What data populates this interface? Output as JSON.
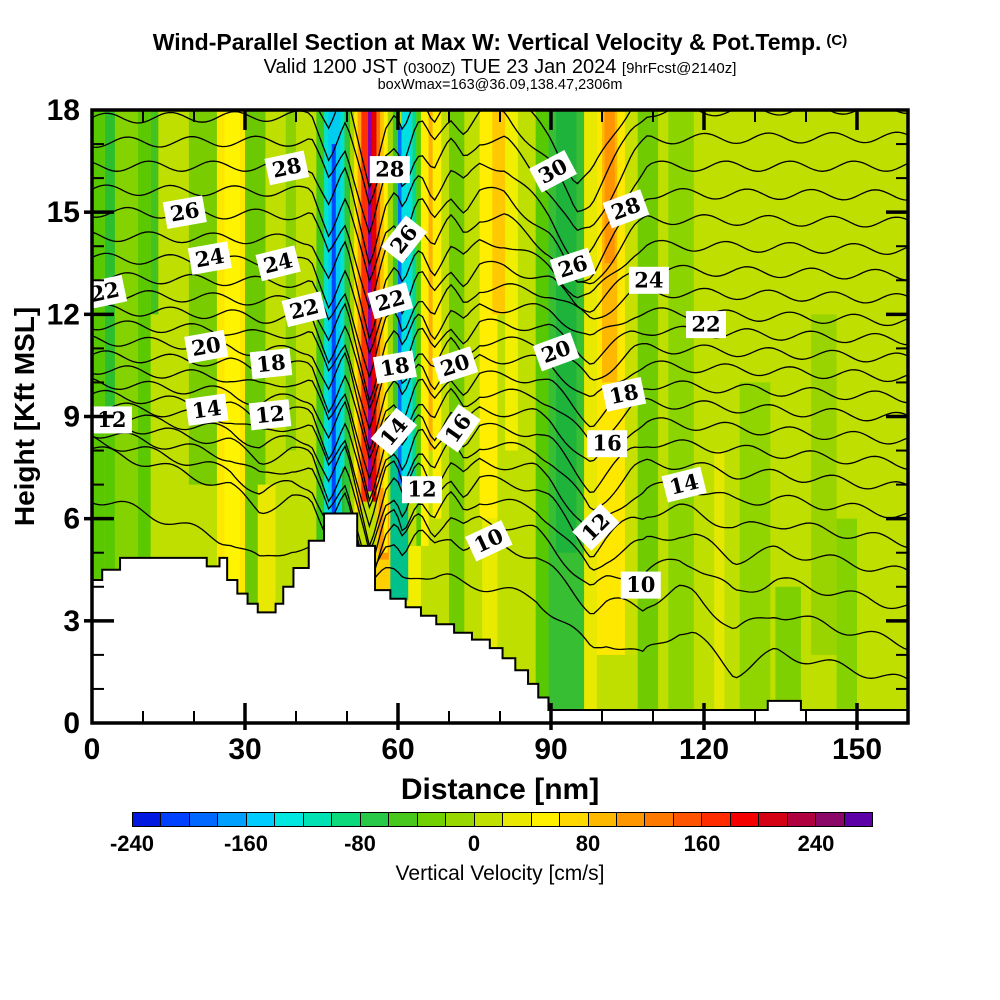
{
  "header": {
    "title": "Wind-Parallel Section at Max W: Vertical Velocity & Pot.Temp.",
    "title_unit": "(C)",
    "valid_prefix": "Valid 1200 JST",
    "valid_z": "(0300Z)",
    "valid_date": "TUE 23 Jan 2024",
    "fcst_tag": "[9hrFcst@2140z]",
    "annotation": "boxWmax=163@36.09,138.47,2306m"
  },
  "chart_data": {
    "type": "heatmap",
    "subtype": "shaded-contour-cross-section",
    "x_axis": {
      "label": "Distance [nm]",
      "min": 0,
      "max": 160,
      "major_ticks": [
        0,
        30,
        60,
        90,
        120,
        150
      ],
      "minor_step": 10
    },
    "y_axis": {
      "label": "Height [Kft MSL]",
      "min": 0,
      "max": 18,
      "major_ticks": [
        0,
        3,
        6,
        9,
        12,
        15,
        18
      ],
      "minor_step": 1
    },
    "colorbar": {
      "label": "Vertical Velocity [cm/s]",
      "min": -240,
      "max": 280,
      "step": 20,
      "tick_values": [
        -240,
        -160,
        -80,
        0,
        80,
        160,
        240
      ],
      "colors": [
        "#0018e0",
        "#0040ff",
        "#0068ff",
        "#00a0ff",
        "#00ccff",
        "#00e8e0",
        "#00e2b4",
        "#0cd87c",
        "#28c848",
        "#48c81c",
        "#70d000",
        "#98d800",
        "#c0e000",
        "#e8e800",
        "#fff000",
        "#ffd800",
        "#ffb800",
        "#ff9800",
        "#ff7800",
        "#ff5400",
        "#ff2c00",
        "#f40000",
        "#d40014",
        "#b00040",
        "#8c0868",
        "#5c00a8"
      ]
    },
    "contours": {
      "variable": "Potential Temperature (C)",
      "interval": 1,
      "thetas": [
        8,
        9,
        10,
        11,
        12,
        13,
        14,
        15,
        16,
        17,
        18,
        19,
        20,
        21,
        22,
        23,
        24,
        25,
        26,
        27,
        28,
        29,
        30,
        31
      ],
      "height_left_kft": [
        6.6,
        8.05,
        8.3,
        8.55,
        8.85,
        9.1,
        9.35,
        9.65,
        10.0,
        10.4,
        10.8,
        11.25,
        11.7,
        12.15,
        12.6,
        13.1,
        13.65,
        14.3,
        15.0,
        15.65,
        16.35,
        17.05,
        17.75,
        18.45
      ],
      "height_right_kft": [
        1.2,
        2.3,
        3.4,
        4.4,
        5.3,
        6.1,
        6.9,
        7.6,
        8.3,
        8.95,
        9.55,
        10.15,
        10.7,
        11.25,
        11.8,
        12.45,
        13.15,
        13.9,
        14.7,
        15.5,
        16.35,
        17.2,
        18.05,
        18.9
      ],
      "waves": [
        {
          "c": 46.5,
          "w": 3.5,
          "a": -1.2,
          "f": "mid"
        },
        {
          "c": 54.5,
          "w": 5,
          "a": -2.8,
          "f": "mid"
        },
        {
          "c": 61,
          "w": 3.5,
          "a": -1.4,
          "f": "mid"
        },
        {
          "c": 67,
          "w": 3.5,
          "a": -0.9,
          "f": "mid"
        },
        {
          "c": 73,
          "w": 3,
          "a": -0.5,
          "f": "mid"
        },
        {
          "c": 95,
          "w": 14,
          "a": -2.4,
          "f": "high"
        },
        {
          "c": 98,
          "w": 8,
          "a": -0.7,
          "f": "mid"
        },
        {
          "c": 98,
          "w": 11,
          "a": -1.1,
          "f": "low"
        },
        {
          "c": 33,
          "w": 6,
          "a": -0.5,
          "f": "low"
        },
        {
          "c": 25,
          "w": 20,
          "a": -0.8,
          "f": "vlow"
        },
        {
          "c": 108,
          "w": 7,
          "a": -0.9,
          "f": "vlow"
        },
        {
          "c": 126,
          "w": 8,
          "a": -0.9,
          "f": "vlow"
        }
      ],
      "labels": [
        [
          28,
          38.2,
          16.3,
          -12
        ],
        [
          28,
          58.4,
          16.25,
          0
        ],
        [
          30,
          90.4,
          16.2,
          -28
        ],
        [
          28,
          104.7,
          15.1,
          -20
        ],
        [
          26,
          18.2,
          15.0,
          -10
        ],
        [
          26,
          61.2,
          14.2,
          -52
        ],
        [
          26,
          94.3,
          13.4,
          -18
        ],
        [
          24,
          23.1,
          13.65,
          -10
        ],
        [
          24,
          36.5,
          13.5,
          -14
        ],
        [
          24,
          109.2,
          13.0,
          0
        ],
        [
          22,
          2.5,
          12.65,
          -12
        ],
        [
          22,
          41.6,
          12.15,
          -14
        ],
        [
          22,
          58.5,
          12.4,
          -16
        ],
        [
          22,
          120.4,
          11.7,
          0
        ],
        [
          20,
          22.4,
          11.05,
          -10
        ],
        [
          20,
          71.2,
          10.5,
          -18
        ],
        [
          20,
          91.0,
          10.9,
          -20
        ],
        [
          18,
          35.1,
          10.55,
          -6
        ],
        [
          18,
          59.4,
          10.45,
          -10
        ],
        [
          18,
          104.3,
          9.65,
          -12
        ],
        [
          16,
          71.8,
          8.65,
          -55
        ],
        [
          16,
          101.0,
          8.2,
          0
        ],
        [
          14,
          22.5,
          9.2,
          -8
        ],
        [
          14,
          59.2,
          8.55,
          -50
        ],
        [
          14,
          116.1,
          7.0,
          -14
        ],
        [
          12,
          3.9,
          8.9,
          0
        ],
        [
          12,
          34.9,
          9.05,
          -6
        ],
        [
          12,
          64.7,
          6.85,
          0
        ],
        [
          12,
          98.8,
          5.75,
          -45
        ],
        [
          10,
          77.8,
          5.35,
          -25
        ],
        [
          10,
          107.6,
          4.05,
          0
        ]
      ]
    },
    "base_fill": "#bedf00",
    "fill_bands": [
      [
        0,
        2.5,
        "#58c800",
        18,
        0
      ],
      [
        2.5,
        4.5,
        "#2cbe2c",
        18,
        9
      ],
      [
        2.5,
        4.5,
        "#58c800",
        9,
        0
      ],
      [
        4.5,
        9,
        "#84d200",
        18,
        0
      ],
      [
        9,
        11.5,
        "#5cc800",
        18,
        4
      ],
      [
        11.5,
        13,
        "#44c21e",
        18,
        12
      ],
      [
        19,
        24.5,
        "#78cc00",
        18,
        7
      ],
      [
        24.5,
        30,
        "#ffe800",
        18,
        0
      ],
      [
        26,
        29,
        "#fff400",
        18,
        3
      ],
      [
        30,
        34,
        "#6cc800",
        18,
        0
      ],
      [
        32.5,
        36,
        "#e8e800",
        7,
        3
      ],
      [
        38,
        40,
        "#8cd200",
        18,
        8
      ],
      [
        44,
        45.5,
        "#40c818",
        18,
        0
      ],
      [
        45.5,
        49.5,
        "#00e2cc",
        18,
        5
      ],
      [
        46.3,
        48.7,
        "#00ccf0",
        18,
        5.5
      ],
      [
        47,
        47.8,
        "#0048ff",
        17,
        6
      ],
      [
        49,
        52,
        "#28bc34",
        7.5,
        0
      ],
      [
        49.5,
        50.6,
        "#30c63a",
        18,
        6
      ],
      [
        50.6,
        51.4,
        "#a0d800",
        18,
        6
      ],
      [
        51.4,
        52.1,
        "#ffe800",
        18,
        5
      ],
      [
        52.1,
        52.8,
        "#ffa800",
        18,
        6.2
      ],
      [
        52.8,
        54.1,
        "#ff3000",
        18,
        6.5
      ],
      [
        54.1,
        54.9,
        "#8c00a8",
        18,
        6.8
      ],
      [
        54.9,
        55.8,
        "#e80000",
        18,
        6.5
      ],
      [
        55.8,
        56.5,
        "#ff7000",
        18,
        5.8
      ],
      [
        56.5,
        57.2,
        "#ffc000",
        18,
        5.2
      ],
      [
        54.5,
        64.5,
        "#f2ee00",
        5.2,
        0
      ],
      [
        55.8,
        58.6,
        "#ffd000",
        7.2,
        3.9
      ],
      [
        56.2,
        58.2,
        "#ff9800",
        6.9,
        4.8
      ],
      [
        57.2,
        58,
        "#ffee00",
        18,
        5
      ],
      [
        58,
        59,
        "#a8d800",
        18,
        6.5
      ],
      [
        59,
        60,
        "#38c828",
        18,
        6.5
      ],
      [
        58.5,
        62,
        "#00c08c",
        9,
        3.6
      ],
      [
        60,
        60.7,
        "#0070ff",
        17.5,
        7
      ],
      [
        60.7,
        62.8,
        "#00e0e0",
        18,
        7
      ],
      [
        62.8,
        63.6,
        "#00d898",
        18,
        7
      ],
      [
        63.6,
        64.5,
        "#58cc00",
        18,
        5.2
      ],
      [
        64.5,
        66,
        "#ffee00",
        18,
        5.2
      ],
      [
        66,
        66.8,
        "#ffb000",
        18,
        8
      ],
      [
        66.8,
        68.5,
        "#ffee00",
        18,
        6
      ],
      [
        70,
        73,
        "#70cc00",
        18,
        0
      ],
      [
        76,
        79.5,
        "#ffee00",
        18,
        6
      ],
      [
        76.5,
        79.5,
        "#e8ea00",
        6,
        0
      ],
      [
        78.5,
        81,
        "#ffc800",
        18,
        12
      ],
      [
        81,
        83.5,
        "#f2ee00",
        18,
        8
      ],
      [
        87,
        89.5,
        "#58c800",
        18,
        0
      ],
      [
        89.5,
        96.5,
        "#38be32",
        18,
        0
      ],
      [
        91,
        95,
        "#1eb43c",
        18,
        5
      ],
      [
        96.5,
        99,
        "#e8e800",
        18,
        0
      ],
      [
        99,
        100,
        "#ffe800",
        18,
        2
      ],
      [
        100,
        103,
        "#ffb800",
        18,
        10
      ],
      [
        100.5,
        102.5,
        "#ff9400",
        18,
        13.5
      ],
      [
        100,
        103,
        "#ffe800",
        10,
        2
      ],
      [
        103,
        104.5,
        "#ffe800",
        18,
        2
      ],
      [
        104.5,
        107,
        "#c8e000",
        18,
        2
      ],
      [
        107,
        111,
        "#70cc00",
        18,
        0
      ],
      [
        113,
        118,
        "#8cd400",
        18,
        0
      ],
      [
        122,
        124,
        "#e4e800",
        8,
        0
      ],
      [
        127,
        133,
        "#90d400",
        10,
        0
      ],
      [
        134,
        139,
        "#7ed000",
        4,
        0
      ],
      [
        141,
        146,
        "#9ad400",
        12,
        2
      ],
      [
        146,
        150,
        "#84d200",
        6,
        0
      ]
    ],
    "terrain_steps": [
      [
        0,
        4.2
      ],
      [
        2,
        4.5
      ],
      [
        5.5,
        4.85
      ],
      [
        22.5,
        4.6
      ],
      [
        25,
        4.85
      ],
      [
        26.5,
        4.2
      ],
      [
        28.5,
        3.8
      ],
      [
        30.5,
        3.5
      ],
      [
        32.5,
        3.25
      ],
      [
        36,
        3.5
      ],
      [
        37.5,
        4.0
      ],
      [
        39.5,
        4.55
      ],
      [
        42.5,
        5.35
      ],
      [
        45.5,
        6.15
      ],
      [
        52,
        5.2
      ],
      [
        55.5,
        3.9
      ],
      [
        58.5,
        3.65
      ],
      [
        61.5,
        3.4
      ],
      [
        64.5,
        3.15
      ],
      [
        67.5,
        2.9
      ],
      [
        71,
        2.65
      ],
      [
        74.5,
        2.45
      ],
      [
        78,
        2.2
      ],
      [
        80.5,
        1.9
      ],
      [
        83,
        1.55
      ],
      [
        85.5,
        1.15
      ],
      [
        87.5,
        0.75
      ],
      [
        89.5,
        0.38
      ],
      [
        132.5,
        0.65
      ],
      [
        139,
        0.38
      ],
      [
        160,
        0.38
      ]
    ]
  }
}
